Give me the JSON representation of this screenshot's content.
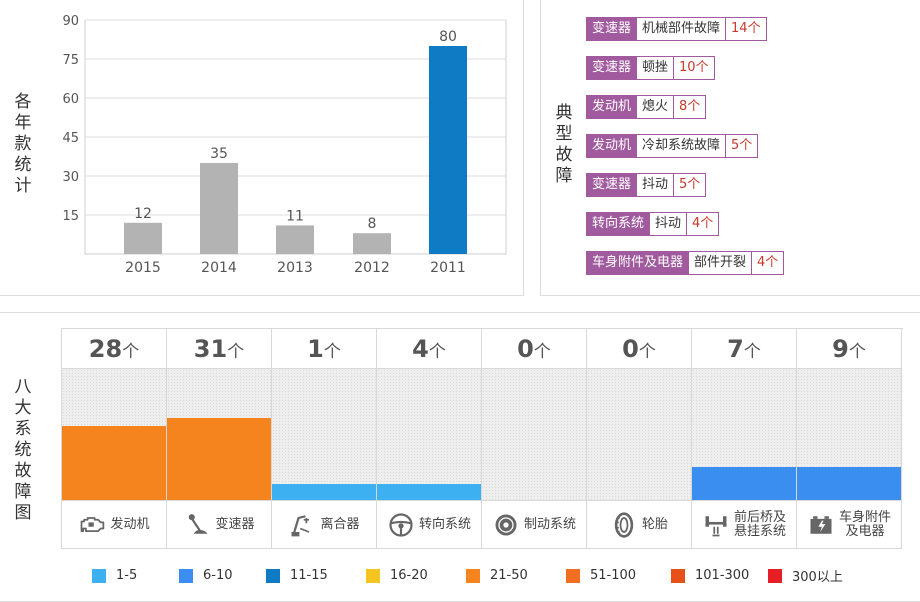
{
  "year_chart": {
    "side_label": "各年款统计",
    "chart_data": {
      "type": "bar",
      "categories": [
        "2015",
        "2014",
        "2013",
        "2012",
        "2011"
      ],
      "values": [
        12,
        35,
        11,
        8,
        80
      ],
      "ylim": [
        0,
        90
      ],
      "yticks": [
        "15",
        "30",
        "45",
        "60",
        "75",
        "90"
      ],
      "bar_colors": [
        "#b3b3b3",
        "#b3b3b3",
        "#b3b3b3",
        "#b3b3b3",
        "#0f7bc4"
      ],
      "grid": true
    }
  },
  "typical_faults": {
    "side_label": "典型故障",
    "tag_color": "#a05a9d",
    "items": [
      {
        "system": "变速器",
        "fault": "机械部件故障",
        "count": "14个"
      },
      {
        "system": "变速器",
        "fault": "顿挫",
        "count": "10个"
      },
      {
        "system": "发动机",
        "fault": "熄火",
        "count": "8个"
      },
      {
        "system": "发动机",
        "fault": "冷却系统故障",
        "count": "5个"
      },
      {
        "system": "变速器",
        "fault": "抖动",
        "count": "5个"
      },
      {
        "system": "转向系统",
        "fault": "抖动",
        "count": "4个"
      },
      {
        "system": "车身附件及电器",
        "fault": "部件开裂",
        "count": "4个"
      }
    ]
  },
  "eight_systems": {
    "side_label": "八大系统故障图",
    "unit": "个",
    "systems": [
      {
        "count": "28",
        "value": 28,
        "name": "发动机",
        "icon": "engine-icon",
        "color": "#f5841f"
      },
      {
        "count": "31",
        "value": 31,
        "name": "变速器",
        "icon": "gear-shift-icon",
        "color": "#f5841f"
      },
      {
        "count": "1",
        "value": 1,
        "name": "离合器",
        "icon": "clutch-pedal-icon",
        "color": "#3cb0f0"
      },
      {
        "count": "4",
        "value": 4,
        "name": "转向系统",
        "icon": "steering-wheel-icon",
        "color": "#3cb0f0"
      },
      {
        "count": "0",
        "value": 0,
        "name": "制动系统",
        "icon": "brake-disc-icon",
        "color": "#3cb0f0"
      },
      {
        "count": "0",
        "value": 0,
        "name": "轮胎",
        "icon": "tire-icon",
        "color": "#3cb0f0"
      },
      {
        "count": "7",
        "value": 7,
        "name": "前后桥及悬挂系统",
        "name_lines": [
          "前后桥及",
          "悬挂系统"
        ],
        "icon": "axle-suspension-icon",
        "color": "#3a8ef0"
      },
      {
        "count": "9",
        "value": 9,
        "name": "车身附件及电器",
        "name_lines": [
          "车身附件",
          "及电器"
        ],
        "icon": "battery-icon",
        "color": "#3a8ef0"
      }
    ],
    "legend": [
      {
        "label": "1-5",
        "color": "#3cb0f0"
      },
      {
        "label": "6-10",
        "color": "#3a8ef0"
      },
      {
        "label": "11-15",
        "color": "#0f7bc4"
      },
      {
        "label": "16-20",
        "color": "#f7c520"
      },
      {
        "label": "21-50",
        "color": "#f5841f"
      },
      {
        "label": "51-100",
        "color": "#f26f21"
      },
      {
        "label": "101-300",
        "color": "#e8501a"
      },
      {
        "label": "300以上",
        "color": "#e61e25"
      }
    ]
  }
}
